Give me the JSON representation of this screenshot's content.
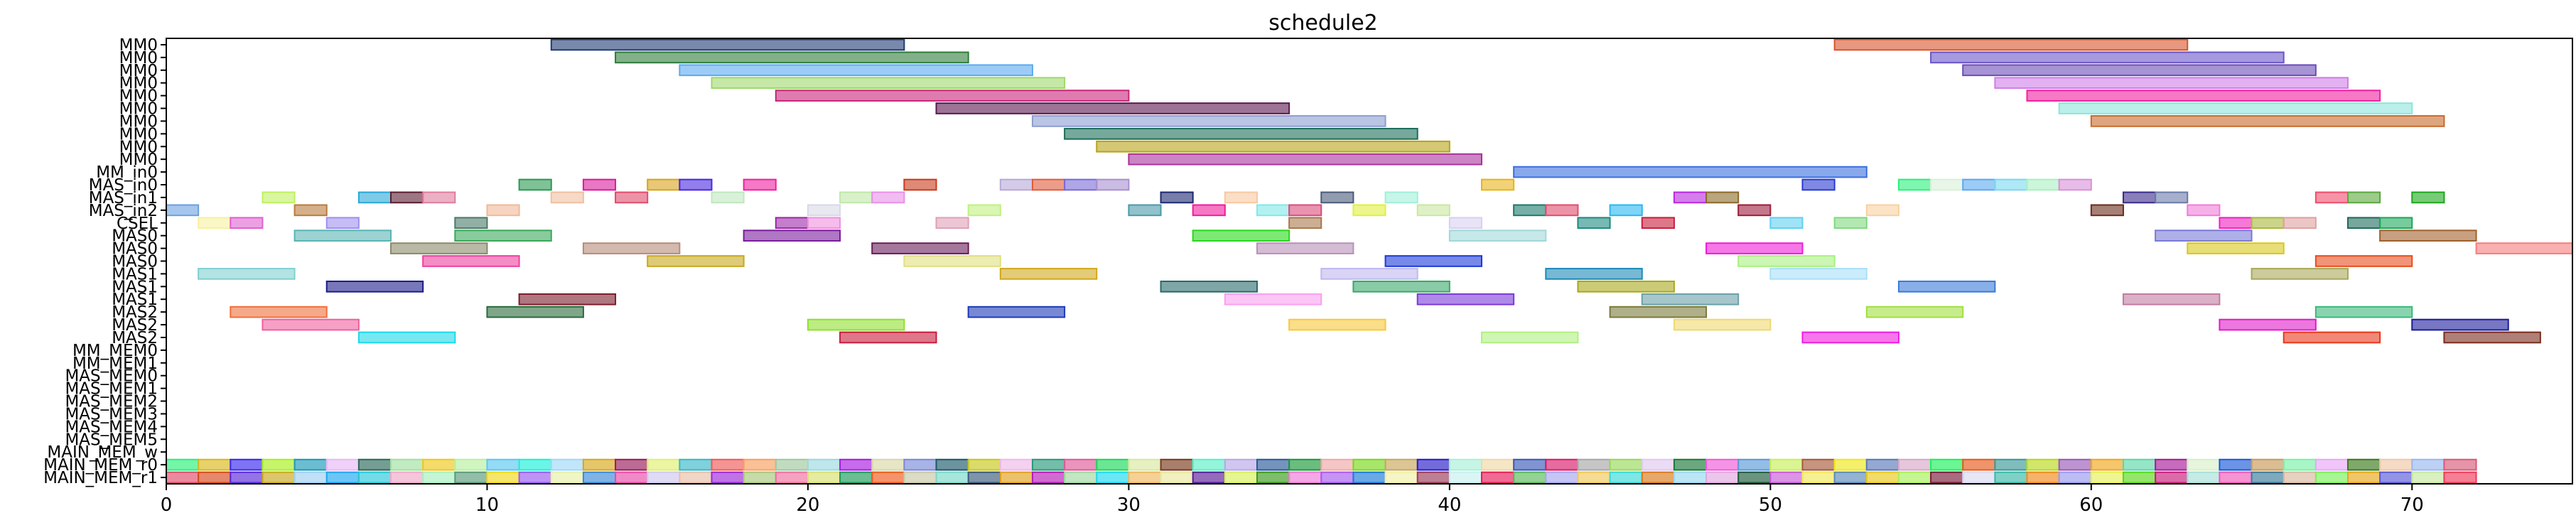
{
  "chart_data": {
    "type": "gantt",
    "title": "schedule2",
    "xlim": [
      0,
      75
    ],
    "x_ticks": [
      0,
      10,
      20,
      30,
      40,
      50,
      60,
      70
    ],
    "grid": false,
    "rows": [
      "MM0",
      "MM0",
      "MM0",
      "MM0",
      "MM0",
      "MM0",
      "MM0",
      "MM0",
      "MM0",
      "MM0",
      "MM_in0",
      "MAS_in0",
      "MAS_in1",
      "MAS_in2",
      "CSEL",
      "MAS0",
      "MAS0",
      "MAS0",
      "MAS1",
      "MAS1",
      "MAS1",
      "MAS2",
      "MAS2",
      "MAS2",
      "MM_MEM0",
      "MM_MEM1",
      "MAS_MEM0",
      "MAS_MEM1",
      "MAS_MEM2",
      "MAS_MEM3",
      "MAS_MEM4",
      "MAS_MEM5",
      "MAIN_MEM_w",
      "MAIN_MEM_r0",
      "MAIN_MEM_r1"
    ],
    "tasks": [
      {
        "row": 0,
        "start": 12,
        "end": 23,
        "color": "#1f3b73"
      },
      {
        "row": 0,
        "start": 52,
        "end": 63,
        "color": "#d9532b"
      },
      {
        "row": 1,
        "start": 14,
        "end": 25,
        "color": "#2e7d3a"
      },
      {
        "row": 1,
        "start": 55,
        "end": 66,
        "color": "#6a55c8"
      },
      {
        "row": 2,
        "start": 16,
        "end": 27,
        "color": "#5aaaf0"
      },
      {
        "row": 2,
        "start": 56,
        "end": 67,
        "color": "#6b4cb8"
      },
      {
        "row": 3,
        "start": 17,
        "end": 28,
        "color": "#9fd86a"
      },
      {
        "row": 3,
        "start": 57,
        "end": 68,
        "color": "#d07de8"
      },
      {
        "row": 4,
        "start": 19,
        "end": 30,
        "color": "#c8257a"
      },
      {
        "row": 4,
        "start": 58,
        "end": 69,
        "color": "#f020a0"
      },
      {
        "row": 5,
        "start": 24,
        "end": 35,
        "color": "#5c1850"
      },
      {
        "row": 5,
        "start": 59,
        "end": 70,
        "color": "#8ee4dc"
      },
      {
        "row": 6,
        "start": 27,
        "end": 38,
        "color": "#8c9ed0"
      },
      {
        "row": 6,
        "start": 60,
        "end": 71,
        "color": "#c86a2c"
      },
      {
        "row": 7,
        "start": 28,
        "end": 39,
        "color": "#1c6e5a"
      },
      {
        "row": 8,
        "start": 29,
        "end": 40,
        "color": "#b8a418"
      },
      {
        "row": 9,
        "start": 30,
        "end": 41,
        "color": "#a8329c"
      },
      {
        "row": 10,
        "start": 42,
        "end": 53,
        "color": "#3a6ee0"
      },
      {
        "row": 11,
        "start": 11,
        "end": 12,
        "color": "#2a9a52"
      },
      {
        "row": 11,
        "start": 13,
        "end": 14,
        "color": "#d81c9c"
      },
      {
        "row": 11,
        "start": 15,
        "end": 16,
        "color": "#d8a41c"
      },
      {
        "row": 11,
        "start": 16,
        "end": 17,
        "color": "#4a28e0"
      },
      {
        "row": 11,
        "start": 18,
        "end": 19,
        "color": "#f020a0"
      },
      {
        "row": 11,
        "start": 23,
        "end": 24,
        "color": "#c83c1c"
      },
      {
        "row": 11,
        "start": 26,
        "end": 27,
        "color": "#b8a8d8"
      },
      {
        "row": 11,
        "start": 27,
        "end": 28,
        "color": "#e05c3c"
      },
      {
        "row": 11,
        "start": 28,
        "end": 29,
        "color": "#7a6ad8"
      },
      {
        "row": 11,
        "start": 29,
        "end": 30,
        "color": "#a890d0"
      },
      {
        "row": 11,
        "start": 41,
        "end": 42,
        "color": "#e8b41c"
      },
      {
        "row": 11,
        "start": 51,
        "end": 52,
        "color": "#2a3ad0"
      },
      {
        "row": 11,
        "start": 54,
        "end": 55,
        "color": "#2af07a"
      },
      {
        "row": 11,
        "start": 55,
        "end": 56,
        "color": "#d8f0d8"
      },
      {
        "row": 11,
        "start": 56,
        "end": 57,
        "color": "#5aa8f0"
      },
      {
        "row": 11,
        "start": 57,
        "end": 58,
        "color": "#7ad8f0"
      },
      {
        "row": 11,
        "start": 58,
        "end": 59,
        "color": "#a8f0c0"
      },
      {
        "row": 11,
        "start": 59,
        "end": 60,
        "color": "#d890d8"
      },
      {
        "row": 12,
        "start": 3,
        "end": 4,
        "color": "#c0f060"
      },
      {
        "row": 12,
        "start": 6,
        "end": 7,
        "color": "#28a8d8"
      },
      {
        "row": 12,
        "start": 7,
        "end": 8,
        "color": "#5a1c30"
      },
      {
        "row": 12,
        "start": 8,
        "end": 9,
        "color": "#e07c9c"
      },
      {
        "row": 12,
        "start": 12,
        "end": 13,
        "color": "#f0c0a0"
      },
      {
        "row": 12,
        "start": 14,
        "end": 15,
        "color": "#e04c6c"
      },
      {
        "row": 12,
        "start": 17,
        "end": 18,
        "color": "#c0e8c0"
      },
      {
        "row": 12,
        "start": 21,
        "end": 22,
        "color": "#c0e8a8"
      },
      {
        "row": 12,
        "start": 22,
        "end": 23,
        "color": "#e890e8"
      },
      {
        "row": 12,
        "start": 31,
        "end": 32,
        "color": "#1c2870"
      },
      {
        "row": 12,
        "start": 33,
        "end": 34,
        "color": "#f8c8a0"
      },
      {
        "row": 12,
        "start": 36,
        "end": 37,
        "color": "#4a5a7a"
      },
      {
        "row": 12,
        "start": 38,
        "end": 39,
        "color": "#a0f0d8"
      },
      {
        "row": 12,
        "start": 47,
        "end": 48,
        "color": "#b828e0"
      },
      {
        "row": 12,
        "start": 48,
        "end": 49,
        "color": "#8a6a28"
      },
      {
        "row": 12,
        "start": 61,
        "end": 62,
        "color": "#3a2a8a"
      },
      {
        "row": 12,
        "start": 62,
        "end": 63,
        "color": "#6a7aa8"
      },
      {
        "row": 12,
        "start": 67,
        "end": 68,
        "color": "#f04c6c"
      },
      {
        "row": 12,
        "start": 68,
        "end": 69,
        "color": "#5aa83c"
      },
      {
        "row": 12,
        "start": 70,
        "end": 71,
        "color": "#1ca81c"
      },
      {
        "row": 13,
        "start": 0,
        "end": 1,
        "color": "#6aa0e0"
      },
      {
        "row": 13,
        "start": 4,
        "end": 5,
        "color": "#b87c3c"
      },
      {
        "row": 13,
        "start": 10,
        "end": 11,
        "color": "#f0b898"
      },
      {
        "row": 13,
        "start": 20,
        "end": 21,
        "color": "#d8d8e8"
      },
      {
        "row": 13,
        "start": 25,
        "end": 26,
        "color": "#c0f080"
      },
      {
        "row": 13,
        "start": 30,
        "end": 31,
        "color": "#4a9aa8"
      },
      {
        "row": 13,
        "start": 32,
        "end": 33,
        "color": "#f01c9c"
      },
      {
        "row": 13,
        "start": 34,
        "end": 35,
        "color": "#80e8e8"
      },
      {
        "row": 13,
        "start": 35,
        "end": 36,
        "color": "#d84c7c"
      },
      {
        "row": 13,
        "start": 37,
        "end": 38,
        "color": "#e0f040"
      },
      {
        "row": 13,
        "start": 39,
        "end": 40,
        "color": "#c8e8a0"
      },
      {
        "row": 13,
        "start": 42,
        "end": 43,
        "color": "#1c7a6a"
      },
      {
        "row": 13,
        "start": 43,
        "end": 44,
        "color": "#e04c6c"
      },
      {
        "row": 13,
        "start": 45,
        "end": 46,
        "color": "#28b8f0"
      },
      {
        "row": 13,
        "start": 49,
        "end": 50,
        "color": "#9c1c3c"
      },
      {
        "row": 13,
        "start": 53,
        "end": 54,
        "color": "#f8d0a0"
      },
      {
        "row": 13,
        "start": 60,
        "end": 61,
        "color": "#6a2c1c"
      },
      {
        "row": 13,
        "start": 63,
        "end": 64,
        "color": "#f07cd8"
      },
      {
        "row": 14,
        "start": 1,
        "end": 2,
        "color": "#f8f0a0"
      },
      {
        "row": 14,
        "start": 2,
        "end": 3,
        "color": "#e060d0"
      },
      {
        "row": 14,
        "start": 5,
        "end": 6,
        "color": "#a090f0"
      },
      {
        "row": 14,
        "start": 9,
        "end": 10,
        "color": "#4a7a6a"
      },
      {
        "row": 14,
        "start": 19,
        "end": 20,
        "color": "#9c28a8"
      },
      {
        "row": 14,
        "start": 20,
        "end": 21,
        "color": "#f090e0"
      },
      {
        "row": 14,
        "start": 24,
        "end": 25,
        "color": "#e0a0b8"
      },
      {
        "row": 14,
        "start": 35,
        "end": 36,
        "color": "#a8784c"
      },
      {
        "row": 14,
        "start": 40,
        "end": 41,
        "color": "#d8d0f0"
      },
      {
        "row": 14,
        "start": 44,
        "end": 45,
        "color": "#1c8a80"
      },
      {
        "row": 14,
        "start": 46,
        "end": 47,
        "color": "#c81c3c"
      },
      {
        "row": 14,
        "start": 50,
        "end": 51,
        "color": "#60d0f0"
      },
      {
        "row": 14,
        "start": 52,
        "end": 53,
        "color": "#80d880"
      },
      {
        "row": 14,
        "start": 64,
        "end": 65,
        "color": "#f020c0"
      },
      {
        "row": 14,
        "start": 65,
        "end": 66,
        "color": "#a8b83c"
      },
      {
        "row": 14,
        "start": 66,
        "end": 67,
        "color": "#e0a0a0"
      },
      {
        "row": 14,
        "start": 68,
        "end": 69,
        "color": "#1c6a5a"
      },
      {
        "row": 14,
        "start": 69,
        "end": 70,
        "color": "#1ca85a"
      },
      {
        "row": 15,
        "start": 4,
        "end": 7,
        "color": "#5ab4b4"
      },
      {
        "row": 15,
        "start": 9,
        "end": 12,
        "color": "#3aa85a"
      },
      {
        "row": 15,
        "start": 18,
        "end": 21,
        "color": "#7a1c9c"
      },
      {
        "row": 15,
        "start": 32,
        "end": 35,
        "color": "#28d81c"
      },
      {
        "row": 15,
        "start": 40,
        "end": 43,
        "color": "#a0d8d8"
      },
      {
        "row": 15,
        "start": 62,
        "end": 65,
        "color": "#7a7ad8"
      },
      {
        "row": 15,
        "start": 69,
        "end": 72,
        "color": "#a0602c"
      },
      {
        "row": 16,
        "start": 7,
        "end": 10,
        "color": "#8a8a6a"
      },
      {
        "row": 16,
        "start": 13,
        "end": 16,
        "color": "#b88a7a"
      },
      {
        "row": 16,
        "start": 22,
        "end": 25,
        "color": "#6a1c5a"
      },
      {
        "row": 16,
        "start": 34,
        "end": 37,
        "color": "#b890b8"
      },
      {
        "row": 16,
        "start": 48,
        "end": 51,
        "color": "#f01cd8"
      },
      {
        "row": 16,
        "start": 63,
        "end": 66,
        "color": "#d8c81c"
      },
      {
        "row": 16,
        "start": 72,
        "end": 75,
        "color": "#f87c7c"
      },
      {
        "row": 17,
        "start": 8,
        "end": 11,
        "color": "#f040a0"
      },
      {
        "row": 17,
        "start": 15,
        "end": 18,
        "color": "#c8a81c"
      },
      {
        "row": 17,
        "start": 23,
        "end": 26,
        "color": "#e0e080"
      },
      {
        "row": 17,
        "start": 38,
        "end": 41,
        "color": "#1c3ad8"
      },
      {
        "row": 17,
        "start": 49,
        "end": 52,
        "color": "#a8f080"
      },
      {
        "row": 17,
        "start": 67,
        "end": 70,
        "color": "#e84c1c"
      },
      {
        "row": 18,
        "start": 1,
        "end": 4,
        "color": "#80d0d0"
      },
      {
        "row": 18,
        "start": 26,
        "end": 29,
        "color": "#d0a81c"
      },
      {
        "row": 18,
        "start": 36,
        "end": 39,
        "color": "#c0b8f0"
      },
      {
        "row": 18,
        "start": 43,
        "end": 46,
        "color": "#1c8ab8"
      },
      {
        "row": 18,
        "start": 50,
        "end": 53,
        "color": "#a8e0f8"
      },
      {
        "row": 18,
        "start": 65,
        "end": 68,
        "color": "#a8a85a"
      },
      {
        "row": 19,
        "start": 5,
        "end": 8,
        "color": "#1c1c8a"
      },
      {
        "row": 19,
        "start": 31,
        "end": 34,
        "color": "#2a6a6a"
      },
      {
        "row": 19,
        "start": 37,
        "end": 40,
        "color": "#3aa86a"
      },
      {
        "row": 19,
        "start": 44,
        "end": 47,
        "color": "#a8a81c"
      },
      {
        "row": 19,
        "start": 54,
        "end": 57,
        "color": "#3a7ad8"
      },
      {
        "row": 20,
        "start": 11,
        "end": 14,
        "color": "#7a1c2c"
      },
      {
        "row": 20,
        "start": 33,
        "end": 36,
        "color": "#f8a0f0"
      },
      {
        "row": 20,
        "start": 39,
        "end": 42,
        "color": "#7a3ad8"
      },
      {
        "row": 20,
        "start": 46,
        "end": 49,
        "color": "#6aa0a8"
      },
      {
        "row": 20,
        "start": 61,
        "end": 64,
        "color": "#c07ca0"
      },
      {
        "row": 21,
        "start": 2,
        "end": 5,
        "color": "#f0703a"
      },
      {
        "row": 21,
        "start": 10,
        "end": 13,
        "color": "#2a6a3a"
      },
      {
        "row": 21,
        "start": 25,
        "end": 28,
        "color": "#1c3ab8"
      },
      {
        "row": 21,
        "start": 45,
        "end": 48,
        "color": "#7a7a3a"
      },
      {
        "row": 21,
        "start": 53,
        "end": 56,
        "color": "#a0e040"
      },
      {
        "row": 21,
        "start": 67,
        "end": 70,
        "color": "#3ab87a"
      },
      {
        "row": 22,
        "start": 3,
        "end": 6,
        "color": "#f060a0"
      },
      {
        "row": 22,
        "start": 20,
        "end": 23,
        "color": "#90e030"
      },
      {
        "row": 22,
        "start": 35,
        "end": 38,
        "color": "#f8c83c"
      },
      {
        "row": 22,
        "start": 47,
        "end": 50,
        "color": "#f0d870"
      },
      {
        "row": 22,
        "start": 64,
        "end": 67,
        "color": "#e01cc8"
      },
      {
        "row": 22,
        "start": 70,
        "end": 73,
        "color": "#1c1c9c"
      },
      {
        "row": 23,
        "start": 6,
        "end": 9,
        "color": "#1cd8e8"
      },
      {
        "row": 23,
        "start": 21,
        "end": 24,
        "color": "#c81c3c"
      },
      {
        "row": 23,
        "start": 41,
        "end": 44,
        "color": "#b0f080"
      },
      {
        "row": 23,
        "start": 51,
        "end": 54,
        "color": "#f01ce0"
      },
      {
        "row": 23,
        "start": 66,
        "end": 69,
        "color": "#e8381c"
      },
      {
        "row": 23,
        "start": 71,
        "end": 74,
        "color": "#7a2c1c"
      }
    ],
    "mem_rows": [
      {
        "row": 33,
        "colors": [
          "#2af07a",
          "#d8b81c",
          "#3a28f0",
          "#a8f01c",
          "#1c9ab8",
          "#e8b8f8",
          "#2a6a5a",
          "#a0e0a0",
          "#f0c81c",
          "#b8f0a0",
          "#5ac8f0",
          "#1cf0d8",
          "#a0d8f8",
          "#d8a81c",
          "#9a1c5a",
          "#e0f070",
          "#3ab8c8",
          "#f05a5a",
          "#f8a060",
          "#a0c8a0",
          "#9cd8e0",
          "#a81ce0",
          "#d8d8a8",
          "#7a8ad8",
          "#1c5a6a",
          "#c8c81c",
          "#f0b8e8",
          "#2a9a7a",
          "#e05a9a",
          "#1cd85a",
          "#d8e8a0",
          "#7a3a1c",
          "#5af0c8",
          "#b8a8e8",
          "#2a5a9a",
          "#1c9a3a",
          "#f0a8a8",
          "#7ad81c",
          "#c8a85a",
          "#2a1cc8",
          "#a8f0d8",
          "#f0d8a8",
          "#3a5ab8",
          "#d81c6a",
          "#a8a8a8",
          "#9ad85a",
          "#e0c8f0",
          "#1c7a3a",
          "#f05ad8",
          "#5a9ad8",
          "#c8f05a",
          "#a85a3a",
          "#f0e81c",
          "#5a7ab8",
          "#d8a8c8",
          "#1cf05a",
          "#e85a1c",
          "#3a9a9a",
          "#b8d81c",
          "#9a5ab8",
          "#f0a81c",
          "#5ad8a8",
          "#a81c9a",
          "#d8f0c8",
          "#1c5ad8",
          "#c89a5a",
          "#7af0a8",
          "#e8a8f8",
          "#3a7a1c",
          "#f0c8a8",
          "#9ab8f0",
          "#d85a7a"
        ]
      },
      {
        "row": 34,
        "colors": [
          "#e04c6c",
          "#d8481c",
          "#5a28d8",
          "#c8a81c",
          "#a0d0f0",
          "#1ca8f0",
          "#28c8d8",
          "#f0a8c8",
          "#a8f0c0",
          "#5a9a7a",
          "#f0d81c",
          "#9a5af0",
          "#e8f0a8",
          "#3a8ad8",
          "#e84ca8",
          "#d0c8f0",
          "#e8c0a8",
          "#9c28d8",
          "#a8c87a",
          "#f070a0",
          "#d8e070",
          "#1c9a5a",
          "#f05a1c",
          "#c8c8a8",
          "#7ad8c8",
          "#3a5a7a",
          "#e0a01c",
          "#b81cb8",
          "#a0d8a0",
          "#1cd8f0",
          "#f0b860",
          "#e8e8a0",
          "#5a1c9a",
          "#d8f05a",
          "#3a9a1c",
          "#f07ad8",
          "#a85af0",
          "#1c7ad8",
          "#f0f0a8",
          "#9a3a5a",
          "#c8f0f0",
          "#e81c5a",
          "#5ab85a",
          "#a8a8f0",
          "#f0c85a",
          "#3ad8d8",
          "#d87a1c",
          "#9ad8f0",
          "#e0a8e0",
          "#1c5a3a",
          "#c85ad8",
          "#f0e85a",
          "#5a8ab8",
          "#e8c81c",
          "#a8f05a",
          "#7a1c3a",
          "#d8d8f0",
          "#3ab8a8",
          "#f0881c",
          "#9a9af0",
          "#e8f05a",
          "#5ad81c",
          "#c81c7a",
          "#a8e0d8",
          "#f05ab8",
          "#3a7a9a",
          "#d8b8a0",
          "#7af05a",
          "#e8a81c",
          "#5a5ad8",
          "#c8e8a0",
          "#f03a5a"
        ]
      }
    ]
  }
}
